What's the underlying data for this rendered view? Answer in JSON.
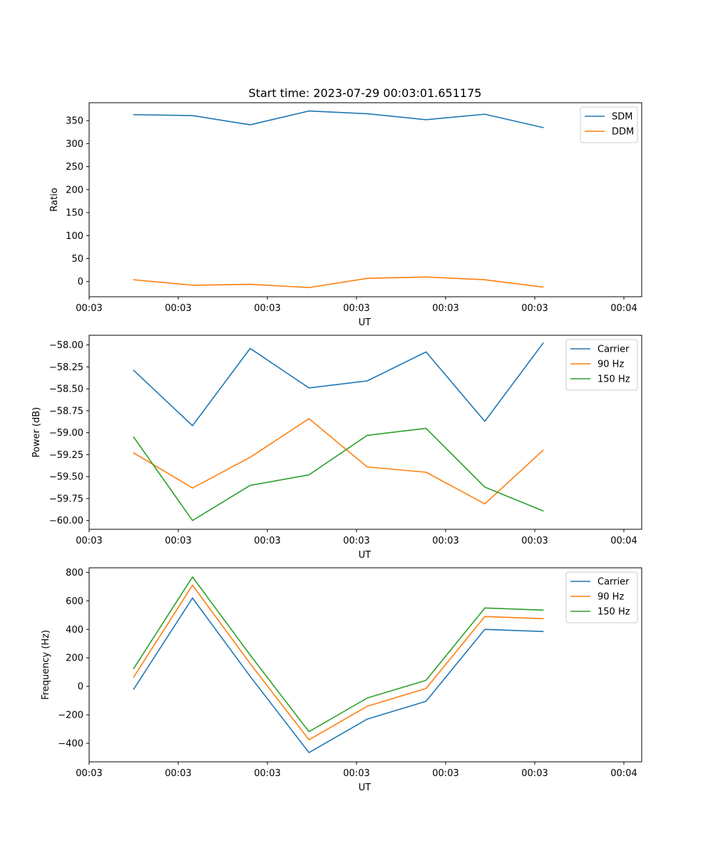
{
  "figure": {
    "title": "Start time: 2023-07-29 00:03:01.651175"
  },
  "chart_data": [
    {
      "type": "line",
      "title": "Start time: 2023-07-29 00:03:01.651175",
      "xlabel": "UT",
      "ylabel": "Ratio",
      "xlim": [
        0,
        9.3
      ],
      "ylim": [
        -33,
        389
      ],
      "x_tick_values": [
        0,
        1.5,
        3,
        4.5,
        6,
        7.5,
        9
      ],
      "x_tick_labels": [
        "00:03",
        "00:03",
        "00:03",
        "00:03",
        "00:03",
        "00:03",
        "00:04"
      ],
      "y_ticks": [
        0,
        50,
        100,
        150,
        200,
        250,
        300,
        350
      ],
      "y_tick_labels": [
        "0",
        "50",
        "100",
        "150",
        "200",
        "250",
        "300",
        "350"
      ],
      "legend_position": "upper right",
      "x": [
        0.75,
        1.74,
        2.71,
        3.7,
        4.68,
        5.67,
        6.66,
        7.64
      ],
      "series": [
        {
          "name": "SDM",
          "color": "#1f77b4",
          "values": [
            363,
            361,
            341,
            371,
            365,
            352,
            364,
            335
          ]
        },
        {
          "name": "DDM",
          "color": "#ff7f0e",
          "values": [
            4,
            -8,
            -6,
            -13,
            7,
            10,
            4,
            -12
          ]
        }
      ]
    },
    {
      "type": "line",
      "xlabel": "UT",
      "ylabel": "Power (dB)",
      "xlim": [
        0,
        9.3
      ],
      "ylim": [
        -60.1,
        -57.89
      ],
      "x_tick_values": [
        0,
        1.5,
        3,
        4.5,
        6,
        7.5,
        9
      ],
      "x_tick_labels": [
        "00:03",
        "00:03",
        "00:03",
        "00:03",
        "00:03",
        "00:03",
        "00:04"
      ],
      "y_ticks": [
        -60.0,
        -59.75,
        -59.5,
        -59.25,
        -59.0,
        -58.75,
        -58.5,
        -58.25,
        -58.0
      ],
      "y_tick_labels": [
        "−60.00",
        "−59.75",
        "−59.50",
        "−59.25",
        "−59.00",
        "−58.75",
        "−58.50",
        "−58.25",
        "−58.00"
      ],
      "legend_position": "upper right",
      "x": [
        0.75,
        1.74,
        2.71,
        3.7,
        4.68,
        5.67,
        6.66,
        7.64
      ],
      "series": [
        {
          "name": "Carrier",
          "color": "#1f77b4",
          "values": [
            -58.29,
            -58.92,
            -58.04,
            -58.49,
            -58.41,
            -58.08,
            -58.87,
            -57.98
          ]
        },
        {
          "name": "90 Hz",
          "color": "#ff7f0e",
          "values": [
            -59.23,
            -59.63,
            -59.28,
            -58.84,
            -59.39,
            -59.45,
            -59.81,
            -59.2
          ]
        },
        {
          "name": "150 Hz",
          "color": "#2ca02c",
          "values": [
            -59.05,
            -60.0,
            -59.6,
            -59.48,
            -59.03,
            -58.95,
            -59.62,
            -59.89
          ]
        }
      ]
    },
    {
      "type": "line",
      "xlabel": "UT",
      "ylabel": "Frequency (Hz)",
      "xlim": [
        0,
        9.3
      ],
      "ylim": [
        -530,
        832
      ],
      "x_tick_values": [
        0,
        1.5,
        3,
        4.5,
        6,
        7.5,
        9
      ],
      "x_tick_labels": [
        "00:03",
        "00:03",
        "00:03",
        "00:03",
        "00:03",
        "00:03",
        "00:04"
      ],
      "y_ticks": [
        -400,
        -200,
        0,
        200,
        400,
        600,
        800
      ],
      "y_tick_labels": [
        "−400",
        "−200",
        "0",
        "200",
        "400",
        "600",
        "800"
      ],
      "legend_position": "upper right",
      "x": [
        0.75,
        1.74,
        2.71,
        3.7,
        4.68,
        5.67,
        6.66,
        7.64
      ],
      "series": [
        {
          "name": "Carrier",
          "color": "#1f77b4",
          "values": [
            -20,
            620,
            70,
            -465,
            -230,
            -105,
            400,
            385
          ]
        },
        {
          "name": "90 Hz",
          "color": "#ff7f0e",
          "values": [
            65,
            710,
            160,
            -375,
            -140,
            -15,
            490,
            475
          ]
        },
        {
          "name": "150 Hz",
          "color": "#2ca02c",
          "values": [
            125,
            768,
            220,
            -318,
            -82,
            42,
            550,
            535
          ]
        }
      ]
    }
  ]
}
